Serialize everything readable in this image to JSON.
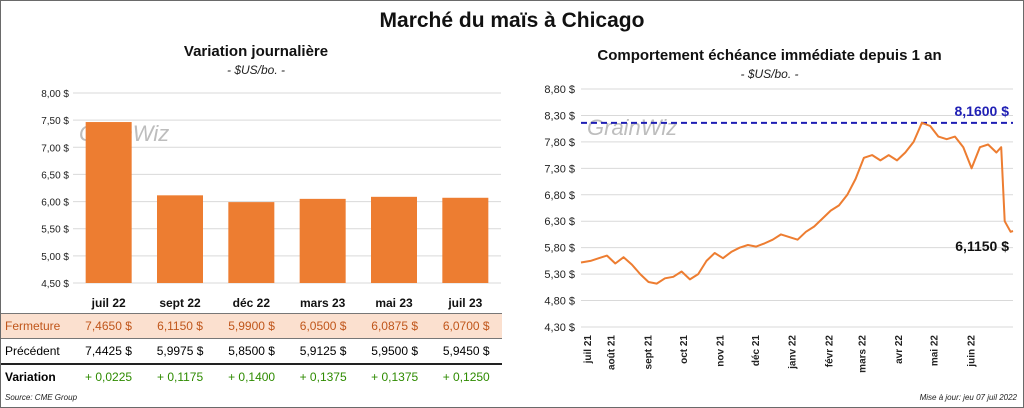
{
  "title": "Marché du maïs à Chicago",
  "source": "Source: CME Group",
  "updated": "Mise à jour: jeu 07 juil 2022",
  "watermark": "GrainWiz",
  "left_panel": {
    "title": "Variation journalière",
    "unit": "- $US/bo. -",
    "rows": {
      "close_label": "Fermeture",
      "prev_label": "Précédent",
      "var_label": "Variation",
      "close": [
        "7,4650  $",
        "6,1150  $",
        "5,9900  $",
        "6,0500  $",
        "6,0875  $",
        "6,0700  $"
      ],
      "prev": [
        "7,4425  $",
        "5,9975  $",
        "5,8500  $",
        "5,9125  $",
        "5,9500  $",
        "5,9450  $"
      ],
      "var": [
        "+ 0,0225",
        "+ 0,1175",
        "+ 0,1400",
        "+ 0,1375",
        "+ 0,1375",
        "+ 0,1250"
      ]
    }
  },
  "right_panel": {
    "title": "Comportement  échéance immédiate depuis 1 an",
    "unit": "- $US/bo. -"
  },
  "colors": {
    "bar": "#ed7d31",
    "line": "#ed7d31",
    "max_line": "#1f1fb4",
    "var_green": "#2e8b00"
  },
  "chart_data": [
    {
      "type": "bar",
      "title": "Variation journalière",
      "categories": [
        "juil 22",
        "sept 22",
        "déc 22",
        "mars 23",
        "mai 23",
        "juil 23"
      ],
      "values": [
        7.465,
        6.115,
        5.99,
        6.05,
        6.0875,
        6.07
      ],
      "ylim": [
        4.5,
        8.0
      ],
      "yticks": [
        "8,00 $",
        "7,50 $",
        "7,00 $",
        "6,50 $",
        "6,00 $",
        "5,50 $",
        "5,00 $",
        "4,50 $"
      ],
      "grid": true
    },
    {
      "type": "line",
      "title": "Comportement  échéance immédiate depuis 1 an",
      "x_range": [
        "2021-07-07",
        "2022-07-07"
      ],
      "xticks": [
        "juil 21",
        "août 21",
        "sept 21",
        "oct 21",
        "nov 21",
        "déc 21",
        "janv 22",
        "févr 22",
        "mars 22",
        "avr 22",
        "mai 22",
        "juin 22"
      ],
      "ylim": [
        4.3,
        8.8
      ],
      "yticks": [
        "8,80 $",
        "8,30 $",
        "7,80 $",
        "7,30 $",
        "6,80 $",
        "6,30 $",
        "5,80 $",
        "5,30 $",
        "4,80 $",
        "4,30 $"
      ],
      "points": [
        [
          "2021-07-07",
          5.52
        ],
        [
          "2021-07-15",
          5.55
        ],
        [
          "2021-07-22",
          5.6
        ],
        [
          "2021-07-29",
          5.65
        ],
        [
          "2021-08-05",
          5.5
        ],
        [
          "2021-08-12",
          5.62
        ],
        [
          "2021-08-19",
          5.48
        ],
        [
          "2021-08-26",
          5.3
        ],
        [
          "2021-09-02",
          5.15
        ],
        [
          "2021-09-09",
          5.12
        ],
        [
          "2021-09-16",
          5.22
        ],
        [
          "2021-09-23",
          5.25
        ],
        [
          "2021-09-30",
          5.35
        ],
        [
          "2021-10-07",
          5.2
        ],
        [
          "2021-10-14",
          5.3
        ],
        [
          "2021-10-21",
          5.55
        ],
        [
          "2021-10-28",
          5.7
        ],
        [
          "2021-11-04",
          5.6
        ],
        [
          "2021-11-11",
          5.72
        ],
        [
          "2021-11-18",
          5.8
        ],
        [
          "2021-11-25",
          5.85
        ],
        [
          "2021-12-02",
          5.82
        ],
        [
          "2021-12-09",
          5.88
        ],
        [
          "2021-12-16",
          5.95
        ],
        [
          "2021-12-23",
          6.05
        ],
        [
          "2021-12-30",
          6.0
        ],
        [
          "2022-01-06",
          5.95
        ],
        [
          "2022-01-13",
          6.1
        ],
        [
          "2022-01-20",
          6.2
        ],
        [
          "2022-01-27",
          6.35
        ],
        [
          "2022-02-03",
          6.5
        ],
        [
          "2022-02-10",
          6.6
        ],
        [
          "2022-02-17",
          6.8
        ],
        [
          "2022-02-24",
          7.1
        ],
        [
          "2022-03-03",
          7.5
        ],
        [
          "2022-03-10",
          7.55
        ],
        [
          "2022-03-17",
          7.45
        ],
        [
          "2022-03-24",
          7.55
        ],
        [
          "2022-03-31",
          7.45
        ],
        [
          "2022-04-07",
          7.6
        ],
        [
          "2022-04-14",
          7.8
        ],
        [
          "2022-04-21",
          8.16
        ],
        [
          "2022-04-28",
          8.1
        ],
        [
          "2022-05-05",
          7.9
        ],
        [
          "2022-05-12",
          7.85
        ],
        [
          "2022-05-19",
          7.9
        ],
        [
          "2022-05-26",
          7.7
        ],
        [
          "2022-06-02",
          7.3
        ],
        [
          "2022-06-09",
          7.7
        ],
        [
          "2022-06-16",
          7.75
        ],
        [
          "2022-06-23",
          7.6
        ],
        [
          "2022-06-27",
          7.7
        ],
        [
          "2022-06-30",
          6.3
        ],
        [
          "2022-07-05",
          6.1
        ],
        [
          "2022-07-07",
          6.115
        ]
      ],
      "max_value": 8.16,
      "max_label": "8,1600 $",
      "last_value": 6.115,
      "last_label": "6,1150 $",
      "grid": true
    }
  ]
}
